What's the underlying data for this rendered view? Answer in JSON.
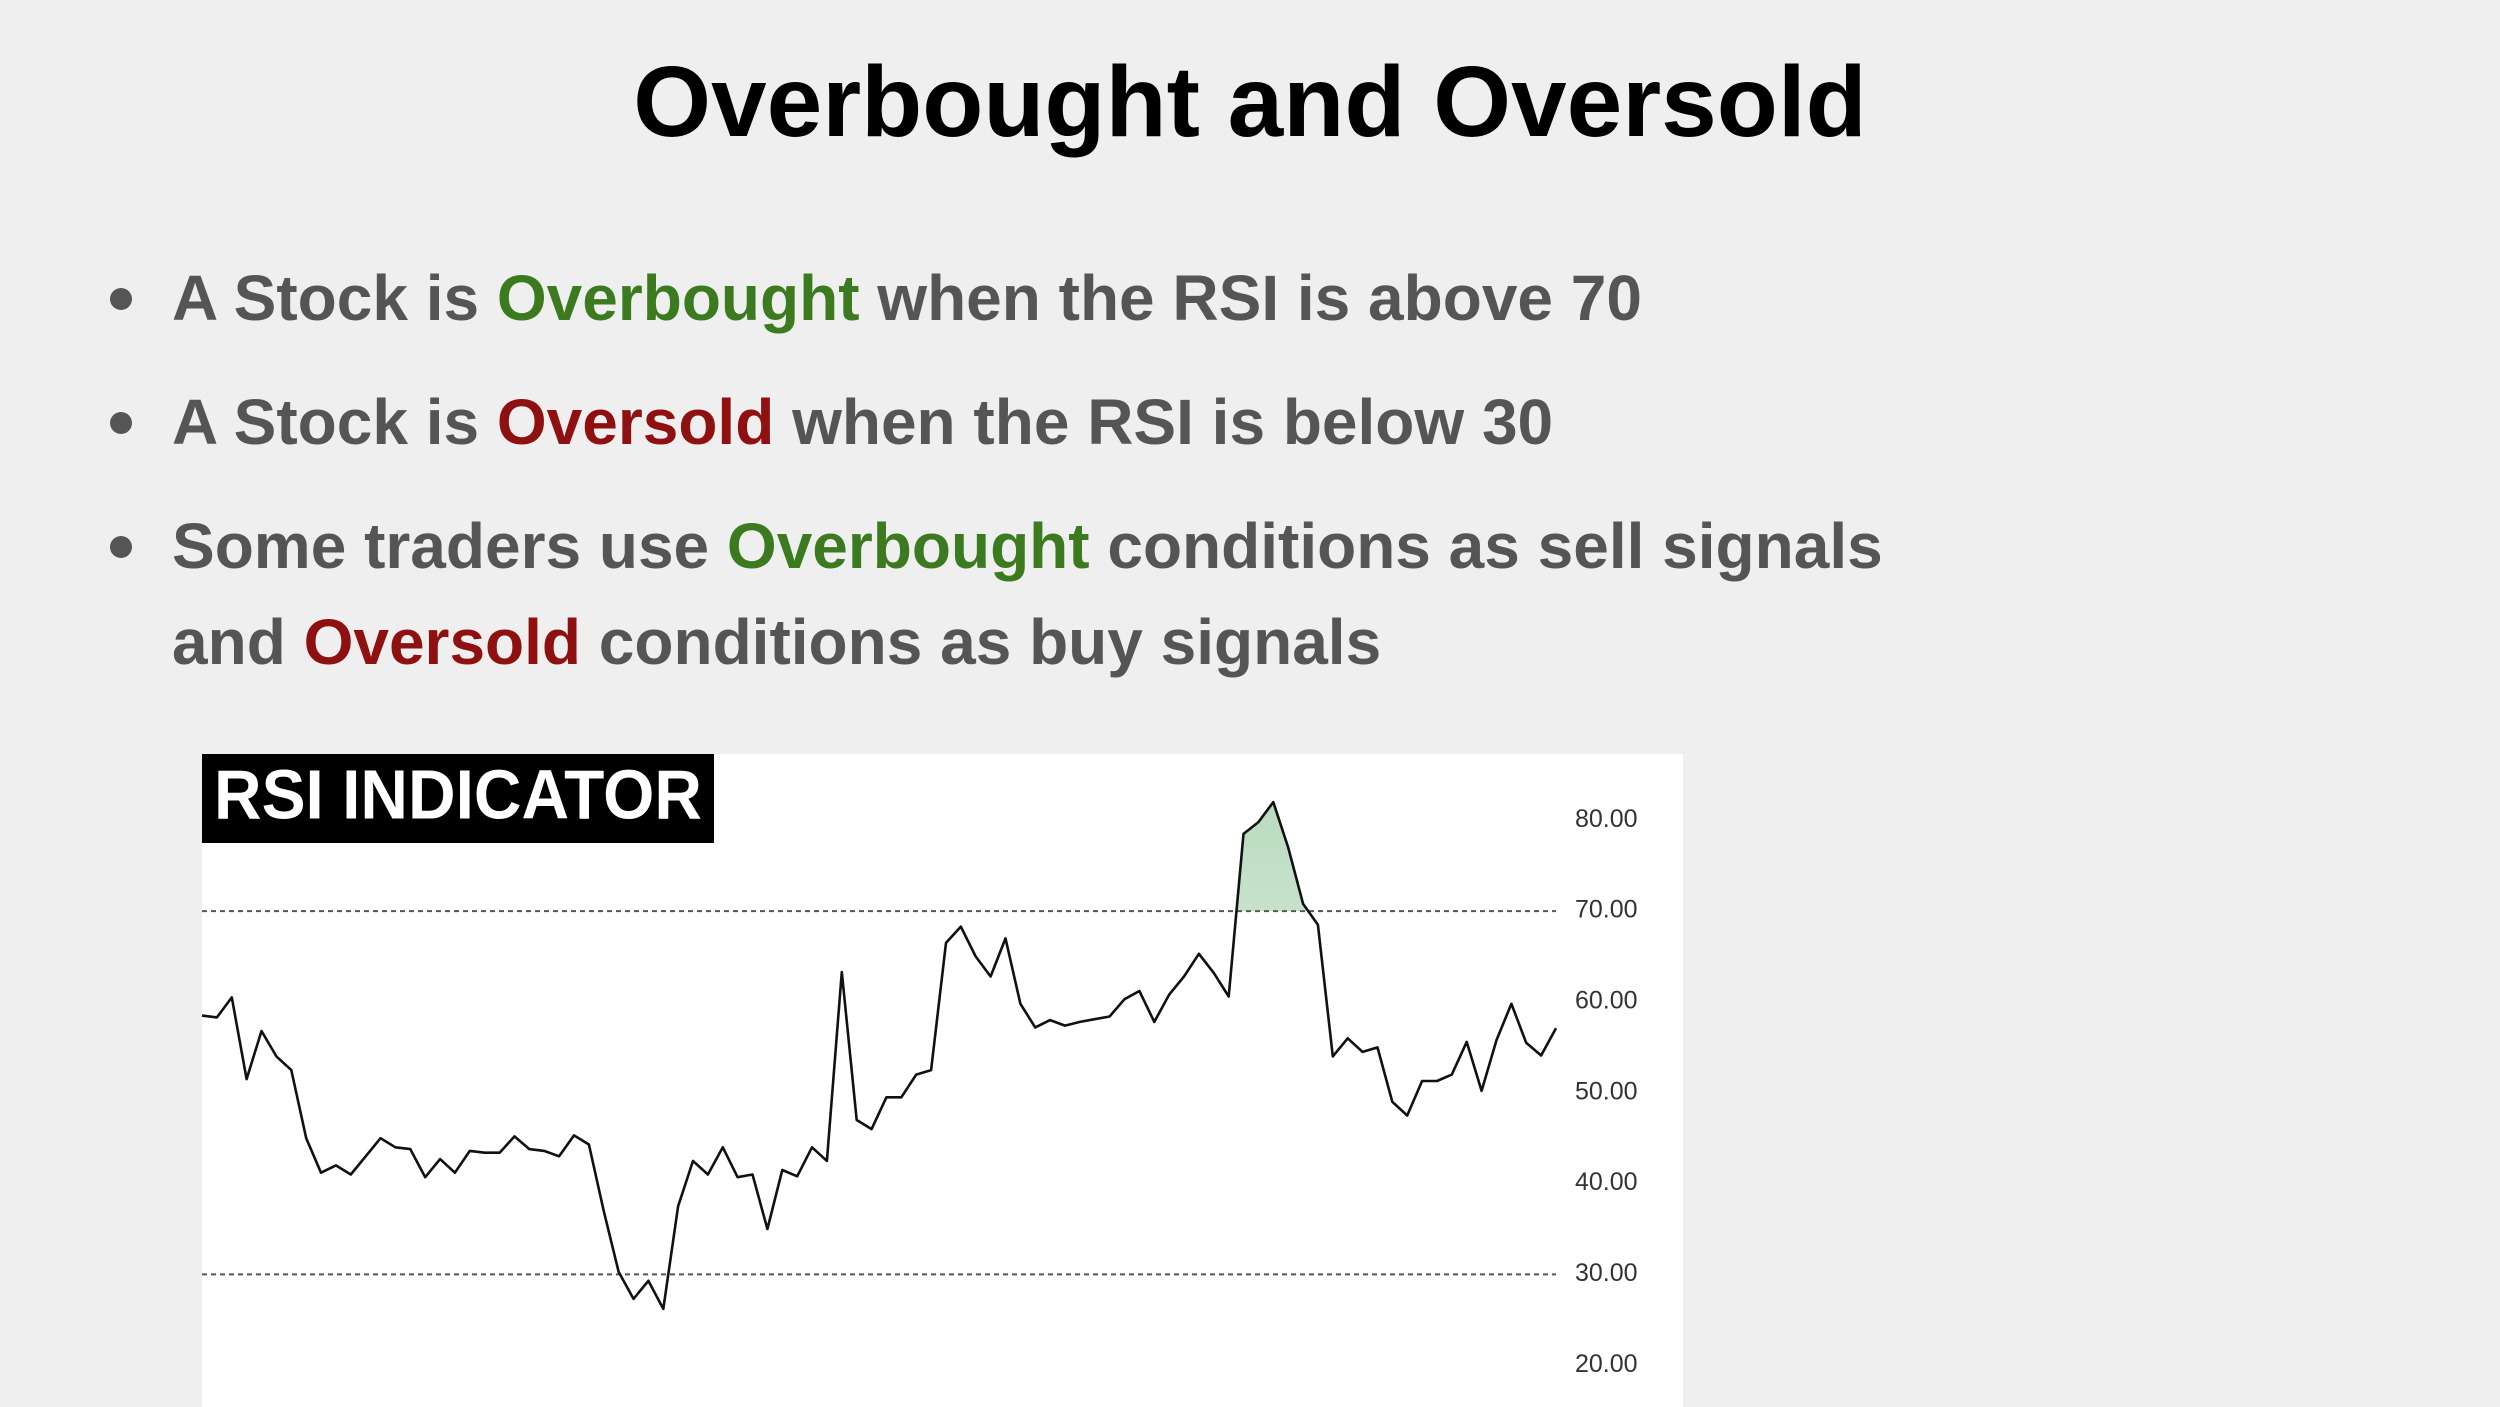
{
  "title": "Overbought and Oversold",
  "bullets": [
    [
      {
        "text": "A Stock is ",
        "color": "#555555"
      },
      {
        "text": "Overbought",
        "color": "#3b7a1f"
      },
      {
        "text": " when the RSI is above 70",
        "color": "#555555"
      }
    ],
    [
      {
        "text": "A Stock is ",
        "color": "#555555"
      },
      {
        "text": "Oversold",
        "color": "#8e1010"
      },
      {
        "text": " when the RSI is below 30",
        "color": "#555555"
      }
    ],
    [
      {
        "text": "Some traders use ",
        "color": "#555555"
      },
      {
        "text": "Overbought",
        "color": "#3b7a1f"
      },
      {
        "text": " conditions as sell signals and ",
        "color": "#555555"
      },
      {
        "text": "Oversold",
        "color": "#8e1010"
      },
      {
        "text": " conditions as buy signals",
        "color": "#555555"
      }
    ]
  ],
  "chart_data": {
    "type": "line",
    "title": "RSI INDICATOR",
    "color": "#111111",
    "values": [
      58.5,
      58.3,
      60.5,
      51.5,
      56.8,
      54,
      52.5,
      45,
      41.2,
      42,
      41,
      43,
      45,
      44,
      43.8,
      40.7,
      42.7,
      41.2,
      43.6,
      43.4,
      43.4,
      45.2,
      43.8,
      43.6,
      43,
      45.3,
      44.3,
      37,
      30.3,
      27.3,
      29.3,
      26.2,
      37.5,
      42.5,
      41,
      44,
      40.7,
      41,
      35,
      41.5,
      40.8,
      44,
      42.5,
      63.3,
      47,
      46,
      49.5,
      49.5,
      52,
      52.5,
      66.5,
      68.3,
      65,
      62.8,
      67,
      59.8,
      57.2,
      58,
      57.4,
      57.8,
      58.1,
      58.4,
      60.3,
      61.2,
      57.8,
      60.8,
      62.8,
      65.3,
      63.2,
      60.6,
      78.5,
      79.8,
      82,
      77,
      70.8,
      68.5,
      54,
      56,
      54.5,
      55,
      49,
      47.5,
      51.3,
      51.3,
      52,
      55.6,
      50.2,
      55.8,
      59.8,
      55.5,
      54.1,
      57.1
    ],
    "ylim": [
      15.4,
      87.3
    ],
    "yticks": [
      {
        "value": 20,
        "label": "20.00"
      },
      {
        "value": 30,
        "label": "30.00"
      },
      {
        "value": 40,
        "label": "40.00"
      },
      {
        "value": 50,
        "label": "50.00"
      },
      {
        "value": 60,
        "label": "60.00"
      },
      {
        "value": 70,
        "label": "70.00"
      },
      {
        "value": 80,
        "label": "80.00"
      }
    ],
    "reference_lines": [
      70,
      30
    ],
    "fill_above": 70,
    "fill_color": "#3a9a4a"
  }
}
